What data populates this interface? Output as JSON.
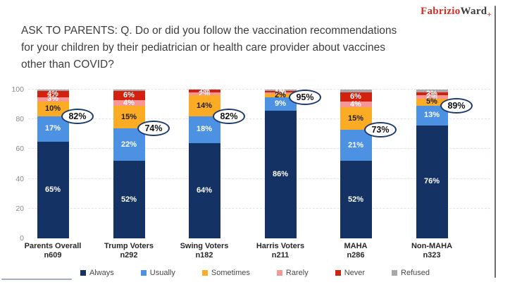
{
  "logo": {
    "part1": "Fabrizio",
    "part2": "Ward",
    "plus": "+"
  },
  "title": {
    "lines": [
      "ASK TO PARENTS: Q. Do or did you follow the vaccination recommendations",
      "for your children by their pediatrician or health care provider about vaccines",
      "other than COVID?"
    ]
  },
  "chart_data": {
    "type": "bar",
    "stacked": true,
    "title": "",
    "xlabel": "",
    "ylabel": "",
    "ylim": [
      0,
      100
    ],
    "yticks": [
      0,
      20,
      40,
      60,
      80,
      100
    ],
    "grid": "horizontal-dashed",
    "legend_position": "bottom",
    "categories": [
      {
        "label": "Parents Overall",
        "n": "n609"
      },
      {
        "label": "Trump Voters",
        "n": "n292"
      },
      {
        "label": "Swing Voters",
        "n": "n182"
      },
      {
        "label": "Harris Voters",
        "n": "n211"
      },
      {
        "label": "MAHA",
        "n": "n286"
      },
      {
        "label": "Non-MAHA",
        "n": "n323"
      }
    ],
    "series": [
      {
        "name": "Always",
        "color": "#143263",
        "label_color": "#ffffff",
        "values": [
          65,
          52,
          64,
          86,
          52,
          76
        ]
      },
      {
        "name": "Usually",
        "color": "#4d92e2",
        "label_color": "#ffffff",
        "values": [
          17,
          22,
          18,
          9,
          21,
          13
        ]
      },
      {
        "name": "Sometimes",
        "color": "#fbab24",
        "label_color": "#1e1e1e",
        "values": [
          10,
          15,
          14,
          2,
          15,
          5
        ]
      },
      {
        "name": "Rarely",
        "color": "#f79694",
        "label_color": "#ffffff",
        "values": [
          3,
          4,
          2,
          1,
          4,
          2
        ]
      },
      {
        "name": "Never",
        "color": "#d32110",
        "label_color": "#ffffff",
        "values": [
          4,
          6,
          2,
          1,
          6,
          2
        ]
      },
      {
        "name": "Refused",
        "color": "#a8a8a8",
        "label_color": "#ffffff",
        "values": [
          1,
          1,
          0,
          1,
          2,
          2
        ],
        "show_labels": false
      }
    ],
    "callouts": {
      "description": "Always + Usually combined, shown in ovals",
      "values": [
        "82%",
        "74%",
        "82%",
        "95%",
        "73%",
        "89%"
      ],
      "numeric": [
        82,
        74,
        82,
        95,
        73,
        89
      ]
    },
    "colors": {
      "callout_border": "#1b3a6b",
      "gridline": "#ecdfe9",
      "axis_text": "#8a8a8a"
    }
  }
}
